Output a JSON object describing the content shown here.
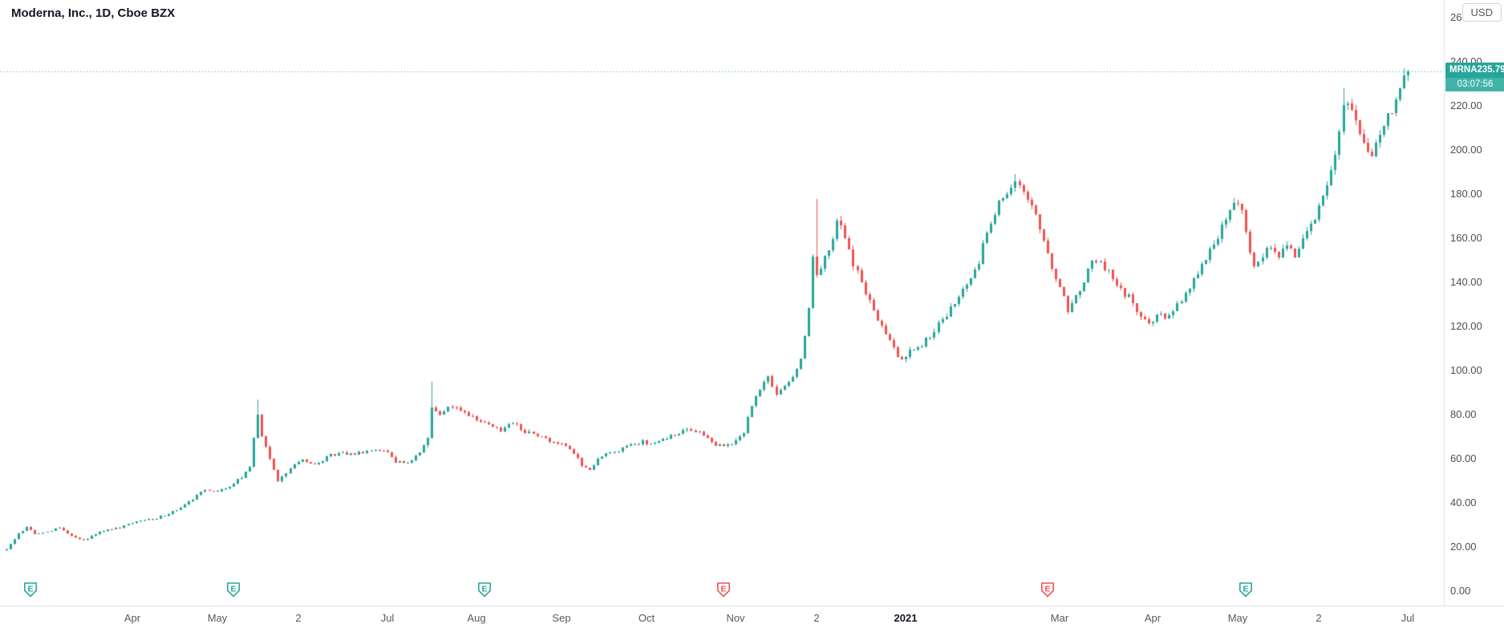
{
  "header": {
    "title": "Moderna, Inc., 1D, Cboe BZX"
  },
  "price_label": {
    "symbol": "MRNA",
    "price": "235.79",
    "countdown": "03:07:56"
  },
  "colors": {
    "up": "#26a69a",
    "down": "#ef5350",
    "badge_bg": "#26a69a",
    "countdown_bg": "#41b3a7",
    "axis_text": "#4c4f59",
    "grid_line": "#e0e3eb",
    "title_text": "#131722"
  },
  "price_axis": {
    "unit": "USD",
    "ticks": [
      {
        "value": 0,
        "label": "0.00"
      },
      {
        "value": 20,
        "label": "20.00"
      },
      {
        "value": 40,
        "label": "40.00"
      },
      {
        "value": 60,
        "label": "60.00"
      },
      {
        "value": 80,
        "label": "80.00"
      },
      {
        "value": 100,
        "label": "100.00"
      },
      {
        "value": 120,
        "label": "120.00"
      },
      {
        "value": 140,
        "label": "140.00"
      },
      {
        "value": 160,
        "label": "160.00"
      },
      {
        "value": 180,
        "label": "180.00"
      },
      {
        "value": 200,
        "label": "200.00"
      },
      {
        "value": 220,
        "label": "220.00"
      },
      {
        "value": 240,
        "label": "240.00"
      },
      {
        "value": 260,
        "label": "260.00"
      }
    ]
  },
  "time_axis": {
    "labels": [
      {
        "day": 31,
        "text": "Apr"
      },
      {
        "day": 52,
        "text": "May"
      },
      {
        "day": 72,
        "text": "2"
      },
      {
        "day": 94,
        "text": "Jul"
      },
      {
        "day": 116,
        "text": "Aug"
      },
      {
        "day": 137,
        "text": "Sep"
      },
      {
        "day": 158,
        "text": "Oct"
      },
      {
        "day": 180,
        "text": "Nov"
      },
      {
        "day": 200,
        "text": "2"
      },
      {
        "day": 222,
        "text": "2021",
        "bold": true
      },
      {
        "day": 260,
        "text": "Mar"
      },
      {
        "day": 283,
        "text": "Apr"
      },
      {
        "day": 304,
        "text": "May"
      },
      {
        "day": 324,
        "text": "2"
      },
      {
        "day": 346,
        "text": "Jul"
      }
    ]
  },
  "earnings": [
    {
      "day": 6,
      "result": "up"
    },
    {
      "day": 56,
      "result": "up"
    },
    {
      "day": 118,
      "result": "up"
    },
    {
      "day": 177,
      "result": "down"
    },
    {
      "day": 257,
      "result": "down"
    },
    {
      "day": 306,
      "result": "up"
    }
  ],
  "chart_data": {
    "type": "candlestick",
    "symbol": "MRNA",
    "name": "Moderna, Inc.",
    "interval": "1D",
    "exchange": "Cboe BZX",
    "currency": "USD",
    "last_close": 235.79,
    "countdown": "03:07:56",
    "visible_price_range": [
      0,
      266
    ],
    "days_total": 347,
    "seed": 20210706,
    "noise": 0.012,
    "wick_noise": 0.012,
    "close_anchors": [
      [
        0,
        19
      ],
      [
        3,
        26
      ],
      [
        5,
        29
      ],
      [
        7,
        26
      ],
      [
        10,
        27
      ],
      [
        13,
        29
      ],
      [
        16,
        25
      ],
      [
        19,
        23
      ],
      [
        22,
        26
      ],
      [
        25,
        28
      ],
      [
        28,
        29
      ],
      [
        31,
        31
      ],
      [
        34,
        32
      ],
      [
        37,
        33
      ],
      [
        40,
        35
      ],
      [
        43,
        38
      ],
      [
        46,
        42
      ],
      [
        49,
        46
      ],
      [
        52,
        45
      ],
      [
        55,
        47
      ],
      [
        58,
        52
      ],
      [
        60,
        57
      ],
      [
        62,
        80
      ],
      [
        63,
        70
      ],
      [
        65,
        60
      ],
      [
        67,
        50
      ],
      [
        69,
        54
      ],
      [
        71,
        58
      ],
      [
        73,
        60
      ],
      [
        76,
        57
      ],
      [
        79,
        61
      ],
      [
        82,
        63
      ],
      [
        85,
        62
      ],
      [
        88,
        63
      ],
      [
        91,
        64
      ],
      [
        94,
        63
      ],
      [
        96,
        59
      ],
      [
        99,
        58
      ],
      [
        102,
        63
      ],
      [
        104,
        70
      ],
      [
        105,
        83
      ],
      [
        107,
        80
      ],
      [
        109,
        84
      ],
      [
        112,
        82
      ],
      [
        114,
        80
      ],
      [
        116,
        78
      ],
      [
        119,
        75
      ],
      [
        122,
        73
      ],
      [
        125,
        76
      ],
      [
        128,
        72
      ],
      [
        131,
        71
      ],
      [
        134,
        68
      ],
      [
        137,
        66
      ],
      [
        140,
        63
      ],
      [
        142,
        57
      ],
      [
        144,
        55
      ],
      [
        146,
        60
      ],
      [
        148,
        63
      ],
      [
        151,
        64
      ],
      [
        154,
        66
      ],
      [
        157,
        68
      ],
      [
        159,
        66
      ],
      [
        162,
        69
      ],
      [
        165,
        71
      ],
      [
        168,
        74
      ],
      [
        171,
        72
      ],
      [
        174,
        67
      ],
      [
        177,
        66
      ],
      [
        180,
        68
      ],
      [
        182,
        72
      ],
      [
        184,
        85
      ],
      [
        186,
        92
      ],
      [
        188,
        97
      ],
      [
        190,
        90
      ],
      [
        192,
        94
      ],
      [
        194,
        98
      ],
      [
        196,
        105
      ],
      [
        198,
        128
      ],
      [
        199,
        150
      ],
      [
        200,
        143
      ],
      [
        201,
        148
      ],
      [
        203,
        155
      ],
      [
        205,
        168
      ],
      [
        207,
        160
      ],
      [
        209,
        148
      ],
      [
        211,
        140
      ],
      [
        213,
        131
      ],
      [
        215,
        124
      ],
      [
        217,
        117
      ],
      [
        219,
        110
      ],
      [
        221,
        104
      ],
      [
        223,
        109
      ],
      [
        226,
        112
      ],
      [
        229,
        118
      ],
      [
        232,
        126
      ],
      [
        235,
        133
      ],
      [
        238,
        141
      ],
      [
        240,
        150
      ],
      [
        242,
        162
      ],
      [
        244,
        172
      ],
      [
        246,
        180
      ],
      [
        248,
        184
      ],
      [
        250,
        185
      ],
      [
        252,
        179
      ],
      [
        254,
        171
      ],
      [
        256,
        158
      ],
      [
        258,
        147
      ],
      [
        260,
        137
      ],
      [
        262,
        128
      ],
      [
        264,
        133
      ],
      [
        266,
        141
      ],
      [
        268,
        150
      ],
      [
        270,
        148
      ],
      [
        272,
        144
      ],
      [
        274,
        139
      ],
      [
        277,
        133
      ],
      [
        280,
        125
      ],
      [
        282,
        120
      ],
      [
        284,
        126
      ],
      [
        286,
        123
      ],
      [
        288,
        128
      ],
      [
        290,
        132
      ],
      [
        292,
        137
      ],
      [
        295,
        147
      ],
      [
        298,
        157
      ],
      [
        301,
        170
      ],
      [
        303,
        178
      ],
      [
        305,
        172
      ],
      [
        307,
        155
      ],
      [
        308,
        146
      ],
      [
        310,
        152
      ],
      [
        312,
        157
      ],
      [
        314,
        150
      ],
      [
        316,
        157
      ],
      [
        318,
        152
      ],
      [
        320,
        159
      ],
      [
        322,
        166
      ],
      [
        324,
        173
      ],
      [
        326,
        184
      ],
      [
        328,
        199
      ],
      [
        330,
        221
      ],
      [
        332,
        217
      ],
      [
        334,
        207
      ],
      [
        336,
        197
      ],
      [
        338,
        201
      ],
      [
        340,
        210
      ],
      [
        342,
        219
      ],
      [
        344,
        228
      ],
      [
        346,
        235.79
      ]
    ],
    "high_overrides": [
      [
        62,
        87
      ],
      [
        105,
        95
      ],
      [
        200,
        178
      ],
      [
        249,
        189
      ],
      [
        330,
        228
      ],
      [
        345,
        237
      ]
    ]
  }
}
